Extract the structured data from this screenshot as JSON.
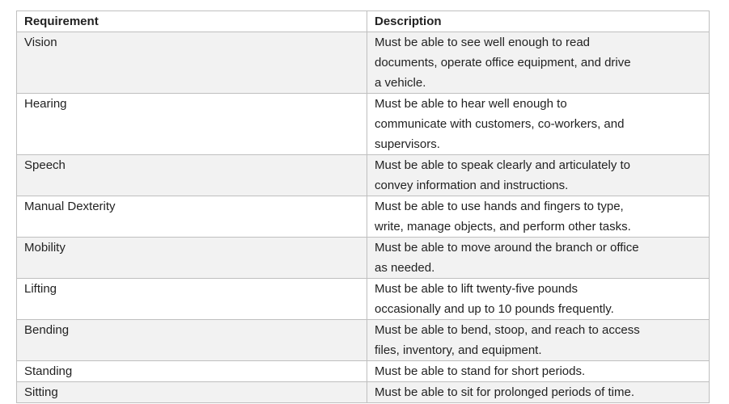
{
  "colors": {
    "border": "#bfbfbf",
    "band_row": "#f2f2f2",
    "text": "#222222",
    "background": "#ffffff"
  },
  "table": {
    "headers": {
      "requirement": "Requirement",
      "description": "Description"
    },
    "rows": [
      {
        "requirement": "Vision",
        "description": "Must be able to see well enough to read\ndocuments, operate office equipment, and drive\na vehicle."
      },
      {
        "requirement": "Hearing",
        "description": "Must be able to hear well enough to\ncommunicate with customers, co-workers, and\nsupervisors."
      },
      {
        "requirement": "Speech",
        "description": "Must be able to speak clearly and articulately to\nconvey information and instructions."
      },
      {
        "requirement": "Manual Dexterity",
        "description": "Must be able to use hands and fingers to type,\nwrite, manage objects, and perform other tasks."
      },
      {
        "requirement": "Mobility",
        "description": "Must be able to move around the branch or office\nas needed."
      },
      {
        "requirement": "Lifting",
        "description": "Must be able to lift twenty-five pounds\noccasionally and up to 10 pounds frequently."
      },
      {
        "requirement": "Bending",
        "description": "Must be able to bend, stoop, and reach to access\nfiles, inventory, and equipment."
      },
      {
        "requirement": "Standing",
        "description": "Must be able to stand for short periods."
      },
      {
        "requirement": "Sitting",
        "description": "Must be able to sit for prolonged periods of time."
      }
    ]
  }
}
